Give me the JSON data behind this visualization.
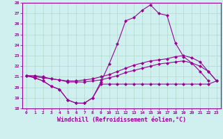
{
  "x": [
    0,
    1,
    2,
    3,
    4,
    5,
    6,
    7,
    8,
    9,
    10,
    11,
    12,
    13,
    14,
    15,
    16,
    17,
    18,
    19,
    20,
    21,
    22,
    23
  ],
  "curve_big": [
    21.1,
    20.9,
    20.6,
    20.1,
    19.8,
    18.8,
    18.5,
    18.5,
    19.0,
    20.5,
    22.2,
    24.1,
    26.3,
    26.6,
    27.3,
    27.8,
    27.0,
    26.8,
    24.2,
    22.9,
    22.3,
    21.5,
    20.6,
    null
  ],
  "curve_dip": [
    21.1,
    20.9,
    20.6,
    20.1,
    19.8,
    18.8,
    18.5,
    18.5,
    19.0,
    20.3,
    20.3,
    20.3,
    20.3,
    20.3,
    20.3,
    20.3,
    20.3,
    20.3,
    20.3,
    20.3,
    20.3,
    20.3,
    20.3,
    20.6
  ],
  "curve_upper": [
    21.1,
    21.1,
    21.0,
    20.8,
    20.7,
    20.6,
    20.6,
    20.7,
    20.8,
    21.0,
    21.2,
    21.5,
    21.8,
    22.1,
    22.3,
    22.5,
    22.6,
    22.7,
    22.9,
    23.0,
    22.8,
    22.4,
    21.5,
    20.6
  ],
  "curve_mid": [
    21.1,
    21.0,
    20.9,
    20.8,
    20.7,
    20.5,
    20.5,
    20.5,
    20.6,
    20.7,
    20.9,
    21.1,
    21.4,
    21.6,
    21.8,
    22.0,
    22.2,
    22.3,
    22.4,
    22.5,
    22.3,
    22.0,
    21.5,
    20.6
  ],
  "color": "#990099",
  "bg_color": "#cff0ee",
  "grid_color": "#b0d8cc",
  "ylim": [
    18,
    28
  ],
  "xlim": [
    0,
    23
  ],
  "xlabel": "Windchill (Refroidissement éolien,°C)"
}
